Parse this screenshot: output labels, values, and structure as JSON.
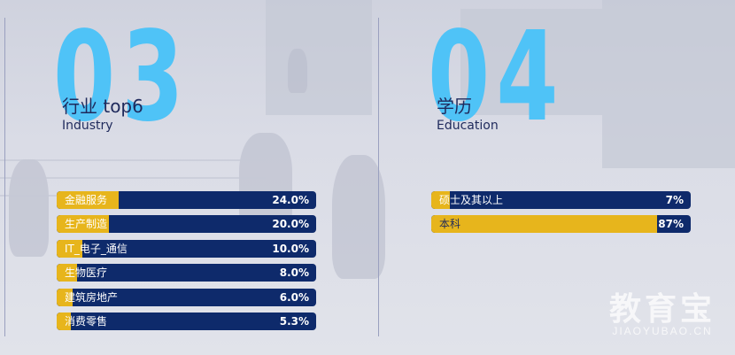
{
  "industry": {
    "number": "03",
    "title": "行业 top6",
    "subtitle": "Industry",
    "rows": [
      {
        "label": "金融服务",
        "value": "24.0%",
        "pct": 24.0
      },
      {
        "label": "生产制造",
        "value": "20.0%",
        "pct": 20.0
      },
      {
        "label": "IT_电子_通信",
        "value": "10.0%",
        "pct": 10.0
      },
      {
        "label": "生物医疗",
        "value": "8.0%",
        "pct": 8.0
      },
      {
        "label": "建筑房地产",
        "value": "6.0%",
        "pct": 6.0
      },
      {
        "label": "消费零售",
        "value": "5.3%",
        "pct": 5.3
      }
    ]
  },
  "education": {
    "number": "04",
    "title": "学历",
    "subtitle": "Education",
    "rows": [
      {
        "label": "硕士及其以上",
        "value": "7%",
        "pct": 7
      },
      {
        "label": "本科",
        "value": "87%",
        "pct": 87
      }
    ]
  },
  "colors": {
    "accent_number": "#4fc3f7",
    "bar_bg": "#0e2a6b",
    "bar_fill": "#e7b51c",
    "title_text": "#1f2a5c"
  },
  "watermark": {
    "brand": "教育宝",
    "domain": "JIAOYUBAO.CN"
  }
}
